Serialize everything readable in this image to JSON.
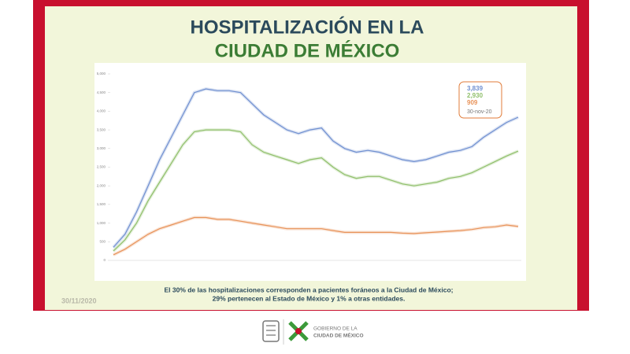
{
  "header": {
    "title_line1": "HOSPITALIZACIÓN EN LA",
    "title_line2": "CIUDAD DE MÉXICO"
  },
  "chart_data": {
    "type": "line",
    "ylim": [
      0,
      5000
    ],
    "yticks": [
      0,
      500,
      {
        "value": 1000,
        "label": "1,000"
      },
      {
        "value": 1500,
        "label": "1,500"
      },
      {
        "value": 2000,
        "label": "2,000"
      },
      {
        "value": 2500,
        "label": "2,500"
      },
      {
        "value": 3000,
        "label": "3,000"
      },
      {
        "value": 3500,
        "label": "3,500"
      },
      {
        "value": 4000,
        "label": "4,000"
      },
      {
        "value": 4500,
        "label": "4,500"
      },
      {
        "value": 5000,
        "label": "5,000"
      }
    ],
    "grid": false,
    "series": [
      {
        "color": "#6f8fd0",
        "values": [
          350,
          700,
          1300,
          2000,
          2700,
          3300,
          3900,
          4500,
          4600,
          4550,
          4550,
          4500,
          4200,
          3900,
          3700,
          3500,
          3400,
          3500,
          3550,
          3200,
          3000,
          2900,
          2950,
          2900,
          2800,
          2700,
          2650,
          2700,
          2800,
          2900,
          2950,
          3050,
          3300,
          3500,
          3700,
          3839
        ],
        "value_labels": [
          null,
          null,
          null,
          null,
          null,
          null,
          null,
          null,
          null,
          null,
          null,
          null,
          null,
          null,
          null,
          null,
          null,
          null,
          null,
          null,
          null,
          null,
          null,
          null,
          null,
          null,
          null,
          null,
          null,
          null,
          null,
          null,
          null,
          null,
          null,
          "3,839"
        ]
      },
      {
        "color": "#8fbf6a",
        "values": [
          250,
          550,
          1000,
          1600,
          2100,
          2600,
          3100,
          3450,
          3500,
          3500,
          3500,
          3450,
          3100,
          2900,
          2800,
          2700,
          2600,
          2700,
          2750,
          2500,
          2300,
          2200,
          2250,
          2250,
          2150,
          2050,
          2000,
          2050,
          2100,
          2200,
          2250,
          2350,
          2500,
          2650,
          2800,
          2930
        ],
        "value_labels": [
          null,
          null,
          null,
          null,
          null,
          null,
          null,
          null,
          null,
          null,
          null,
          null,
          null,
          null,
          null,
          null,
          null,
          null,
          null,
          null,
          null,
          null,
          null,
          null,
          null,
          null,
          null,
          null,
          null,
          null,
          null,
          null,
          null,
          null,
          null,
          "2,930"
        ]
      },
      {
        "color": "#e8935a",
        "values": [
          150,
          300,
          500,
          700,
          850,
          950,
          1050,
          1150,
          1150,
          1100,
          1100,
          1050,
          1000,
          950,
          900,
          850,
          850,
          850,
          850,
          800,
          750,
          750,
          750,
          750,
          750,
          730,
          720,
          740,
          760,
          780,
          800,
          830,
          880,
          900,
          950,
          909
        ],
        "value_labels": [
          null,
          null,
          null,
          null,
          null,
          null,
          null,
          null,
          null,
          null,
          null,
          null,
          null,
          null,
          null,
          null,
          null,
          null,
          null,
          null,
          null,
          null,
          null,
          null,
          null,
          null,
          null,
          null,
          null,
          null,
          null,
          null,
          null,
          null,
          null,
          "909"
        ]
      }
    ],
    "legend_date": "30-nov-20"
  },
  "caption": {
    "line1": "El 30% de las hospitalizaciones corresponden a pacientes foráneos a la Ciudad de México;",
    "line2": "29% pertenecen al Estado de México y 1% a otras entidades."
  },
  "date": "30/11/2020",
  "footer": {
    "line1": "GOBIERNO DE LA",
    "line2": "CIUDAD DE MÉXICO"
  }
}
